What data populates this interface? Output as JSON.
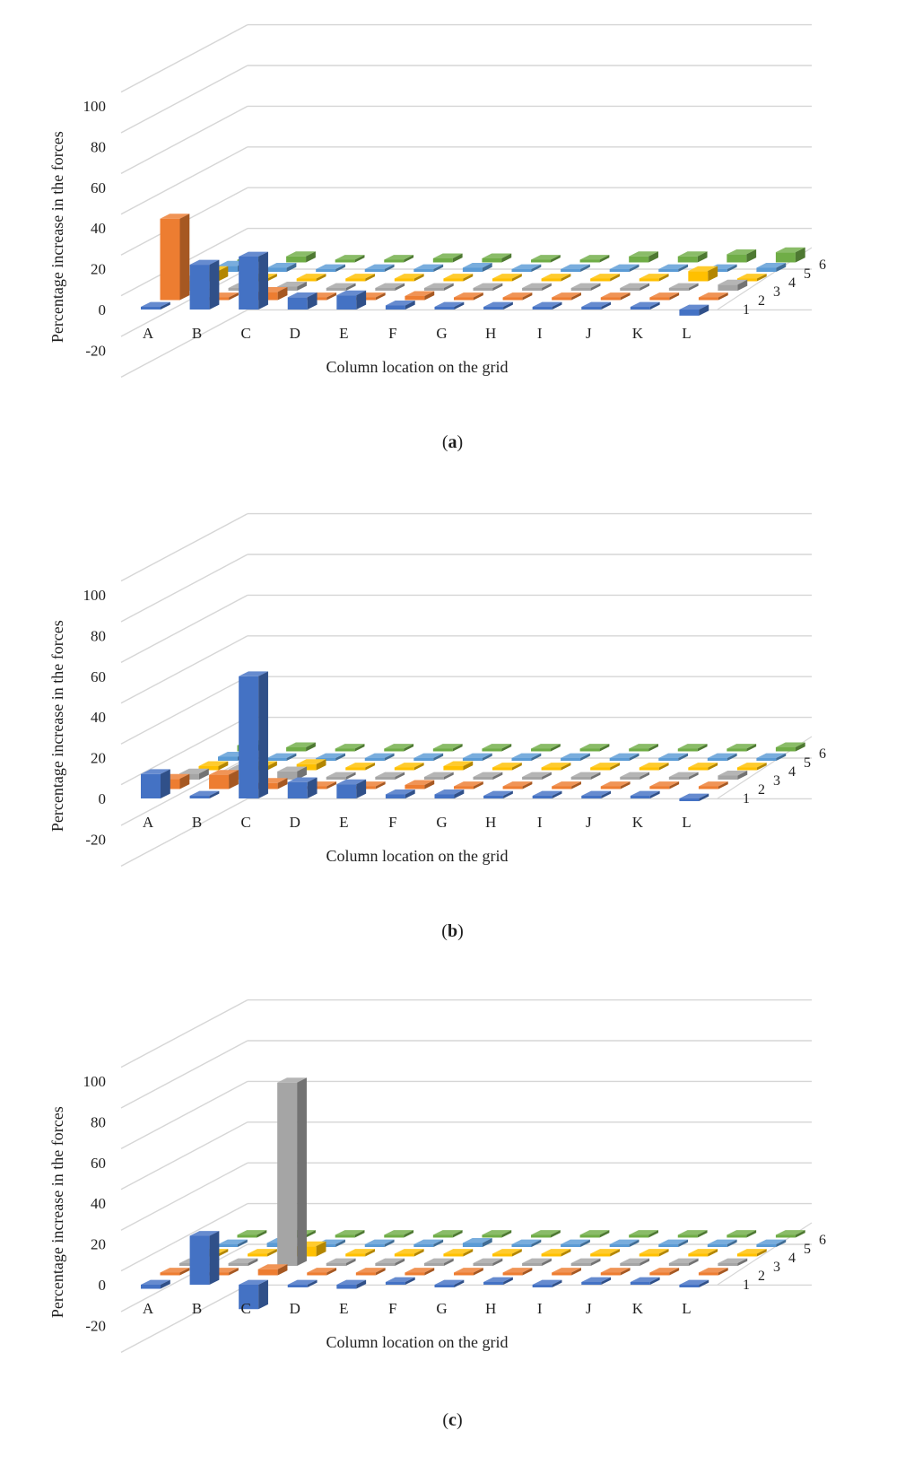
{
  "chart_data": [
    {
      "type": "bar3d",
      "caption": "a",
      "xlabel": "Column location on the grid",
      "ylabel": "Percentage increase in the forces",
      "ylim": [
        -20,
        100
      ],
      "yticks": [
        -20,
        0,
        20,
        40,
        60,
        80,
        100
      ],
      "categories": [
        "A",
        "B",
        "C",
        "D",
        "E",
        "F",
        "G",
        "H",
        "I",
        "J",
        "K",
        "L"
      ],
      "depth_labels": [
        "1",
        "2",
        "3",
        "4",
        "5",
        "6"
      ],
      "series": [
        {
          "name": "1",
          "color": "#4472c4",
          "values": [
            0,
            22,
            26,
            6,
            7,
            2,
            1,
            1,
            0,
            0,
            0,
            -3
          ]
        },
        {
          "name": "2",
          "color": "#ed7d31",
          "values": [
            40,
            0,
            4,
            0,
            0,
            2,
            0,
            0,
            0,
            0,
            0,
            0
          ]
        },
        {
          "name": "3",
          "color": "#a5a5a5",
          "values": [
            5,
            0,
            2,
            0,
            0,
            0,
            0,
            0,
            0,
            0,
            0,
            3
          ]
        },
        {
          "name": "4",
          "color": "#ffc000",
          "values": [
            5,
            0,
            0,
            0,
            0,
            1,
            1,
            0,
            0,
            0,
            5,
            0
          ]
        },
        {
          "name": "5",
          "color": "#5b9bd5",
          "values": [
            3,
            2,
            0,
            1,
            1,
            2,
            1,
            1,
            1,
            1,
            1,
            2
          ]
        },
        {
          "name": "6",
          "color": "#70ad47",
          "values": [
            1,
            3,
            1,
            0,
            2,
            2,
            1,
            1,
            3,
            3,
            4,
            5
          ]
        }
      ]
    },
    {
      "type": "bar3d",
      "caption": "b",
      "xlabel": "Column location on the grid",
      "ylabel": "Percentage increase in the forces",
      "ylim": [
        -20,
        100
      ],
      "yticks": [
        -20,
        0,
        20,
        40,
        60,
        80,
        100
      ],
      "categories": [
        "A",
        "B",
        "C",
        "D",
        "E",
        "F",
        "G",
        "H",
        "I",
        "J",
        "K",
        "L"
      ],
      "depth_labels": [
        "1",
        "2",
        "3",
        "4",
        "5",
        "6"
      ],
      "series": [
        {
          "name": "1",
          "color": "#4472c4",
          "values": [
            12,
            0,
            60,
            8,
            7,
            2,
            2,
            1,
            0,
            1,
            0,
            -1
          ]
        },
        {
          "name": "2",
          "color": "#ed7d31",
          "values": [
            5,
            7,
            3,
            0,
            0,
            2,
            0,
            0,
            0,
            0,
            0,
            0
          ]
        },
        {
          "name": "3",
          "color": "#a5a5a5",
          "values": [
            3,
            5,
            4,
            0,
            0,
            0,
            0,
            0,
            0,
            0,
            0,
            2
          ]
        },
        {
          "name": "4",
          "color": "#ffc000",
          "values": [
            2,
            2,
            3,
            1,
            1,
            2,
            1,
            1,
            1,
            1,
            1,
            1
          ]
        },
        {
          "name": "5",
          "color": "#5b9bd5",
          "values": [
            2,
            1,
            0,
            0,
            0,
            0,
            0,
            0,
            0,
            0,
            0,
            1
          ]
        },
        {
          "name": "6",
          "color": "#70ad47",
          "values": [
            3,
            2,
            1,
            1,
            0,
            0,
            0,
            0,
            0,
            0,
            1,
            2
          ]
        }
      ]
    },
    {
      "type": "bar3d",
      "caption": "c",
      "xlabel": "Column location on the grid",
      "ylabel": "Percentage increase in the forces",
      "ylim": [
        -20,
        100
      ],
      "yticks": [
        -20,
        0,
        20,
        40,
        60,
        80,
        100
      ],
      "categories": [
        "A",
        "B",
        "C",
        "D",
        "E",
        "F",
        "G",
        "H",
        "I",
        "J",
        "K",
        "L"
      ],
      "depth_labels": [
        "1",
        "2",
        "3",
        "4",
        "5",
        "6"
      ],
      "series": [
        {
          "name": "1",
          "color": "#4472c4",
          "values": [
            -2,
            24,
            -12,
            -1,
            -2,
            0,
            -1,
            0,
            -1,
            0,
            0,
            -1
          ]
        },
        {
          "name": "2",
          "color": "#ed7d31",
          "values": [
            1,
            0,
            3,
            0,
            0,
            1,
            0,
            0,
            0,
            0,
            0,
            0
          ]
        },
        {
          "name": "3",
          "color": "#a5a5a5",
          "values": [
            0,
            0,
            90,
            0,
            0,
            1,
            0,
            0,
            0,
            0,
            0,
            0
          ]
        },
        {
          "name": "4",
          "color": "#ffc000",
          "values": [
            0,
            0,
            5,
            1,
            1,
            1,
            1,
            1,
            1,
            1,
            1,
            1
          ]
        },
        {
          "name": "5",
          "color": "#5b9bd5",
          "values": [
            0,
            2,
            1,
            1,
            1,
            2,
            1,
            1,
            1,
            1,
            1,
            1
          ]
        },
        {
          "name": "6",
          "color": "#70ad47",
          "values": [
            1,
            1,
            1,
            1,
            1,
            1,
            1,
            1,
            1,
            1,
            1,
            1
          ]
        }
      ]
    }
  ]
}
